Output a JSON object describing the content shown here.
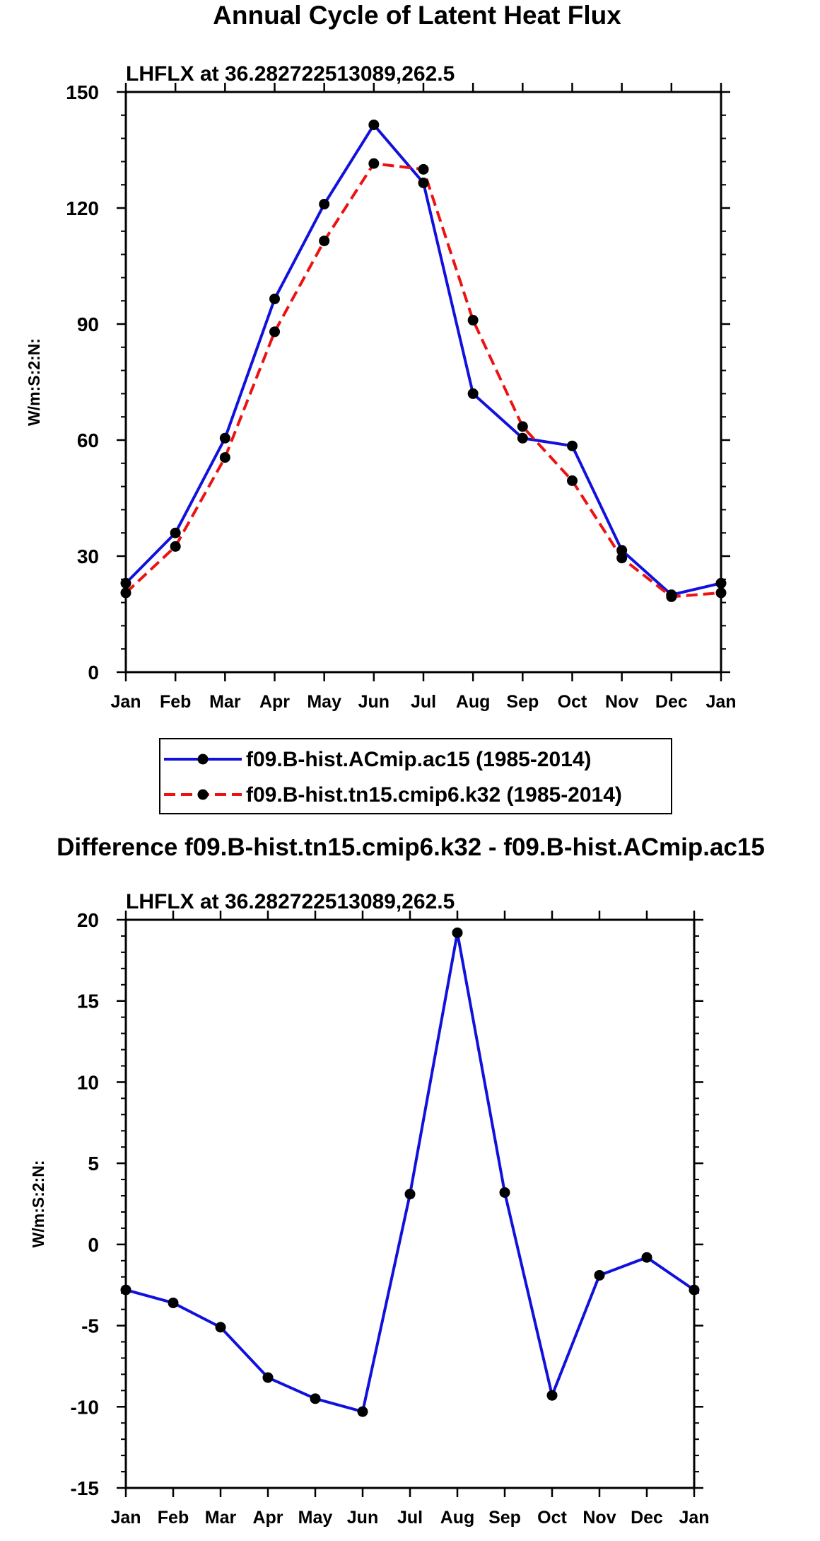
{
  "main_title": "Annual Cycle of Latent Heat Flux",
  "chart_data": [
    {
      "type": "line",
      "title": "Annual Cycle of Latent Heat Flux",
      "subtitle": "LHFLX at 36.282722513089,262.5",
      "xlabel": "",
      "ylabel": "W/m:S:2:N:",
      "categories": [
        "Jan",
        "Feb",
        "Mar",
        "Apr",
        "May",
        "Jun",
        "Jul",
        "Aug",
        "Sep",
        "Oct",
        "Nov",
        "Dec",
        "Jan"
      ],
      "ylim": [
        0,
        150
      ],
      "yticks": [
        0,
        30,
        60,
        90,
        120,
        150
      ],
      "ytick_labels": [
        "0",
        "30",
        "60",
        "90",
        "120",
        "150"
      ],
      "grid": false,
      "legend_position": "below",
      "series": [
        {
          "name": "f09.B-hist.ACmip.ac15 (1985-2014)",
          "color": "#1111dd",
          "dash": "solid",
          "values": [
            23.0,
            36.0,
            60.5,
            96.5,
            121.0,
            141.5,
            126.5,
            72.0,
            60.5,
            58.5,
            31.5,
            20.0,
            23.0
          ]
        },
        {
          "name": "f09.B-hist.tn15.cmip6.k32 (1985-2014)",
          "color": "#ee1111",
          "dash": "dashed",
          "values": [
            20.5,
            32.5,
            55.5,
            88.0,
            111.5,
            131.5,
            130.0,
            91.0,
            63.5,
            49.5,
            29.5,
            19.5,
            20.5
          ]
        }
      ]
    },
    {
      "type": "line",
      "title": "Difference f09.B-hist.tn15.cmip6.k32 - f09.B-hist.ACmip.ac15",
      "subtitle": "LHFLX at 36.282722513089,262.5",
      "xlabel": "",
      "ylabel": "W/m:S:2:N:",
      "categories": [
        "Jan",
        "Feb",
        "Mar",
        "Apr",
        "May",
        "Jun",
        "Jul",
        "Aug",
        "Sep",
        "Oct",
        "Nov",
        "Dec",
        "Jan"
      ],
      "ylim": [
        -15,
        20
      ],
      "yticks": [
        -15,
        -10,
        -5,
        0,
        5,
        10,
        15,
        20
      ],
      "ytick_labels": [
        "-15",
        "-10",
        "-5",
        "0",
        "5",
        "10",
        "15",
        "20"
      ],
      "grid": false,
      "series": [
        {
          "name": "Difference",
          "color": "#1111dd",
          "dash": "solid",
          "values": [
            -2.8,
            -3.6,
            -5.1,
            -8.2,
            -9.5,
            -10.3,
            3.1,
            19.2,
            3.2,
            -9.3,
            -1.9,
            -0.8,
            -2.8
          ]
        }
      ]
    }
  ]
}
